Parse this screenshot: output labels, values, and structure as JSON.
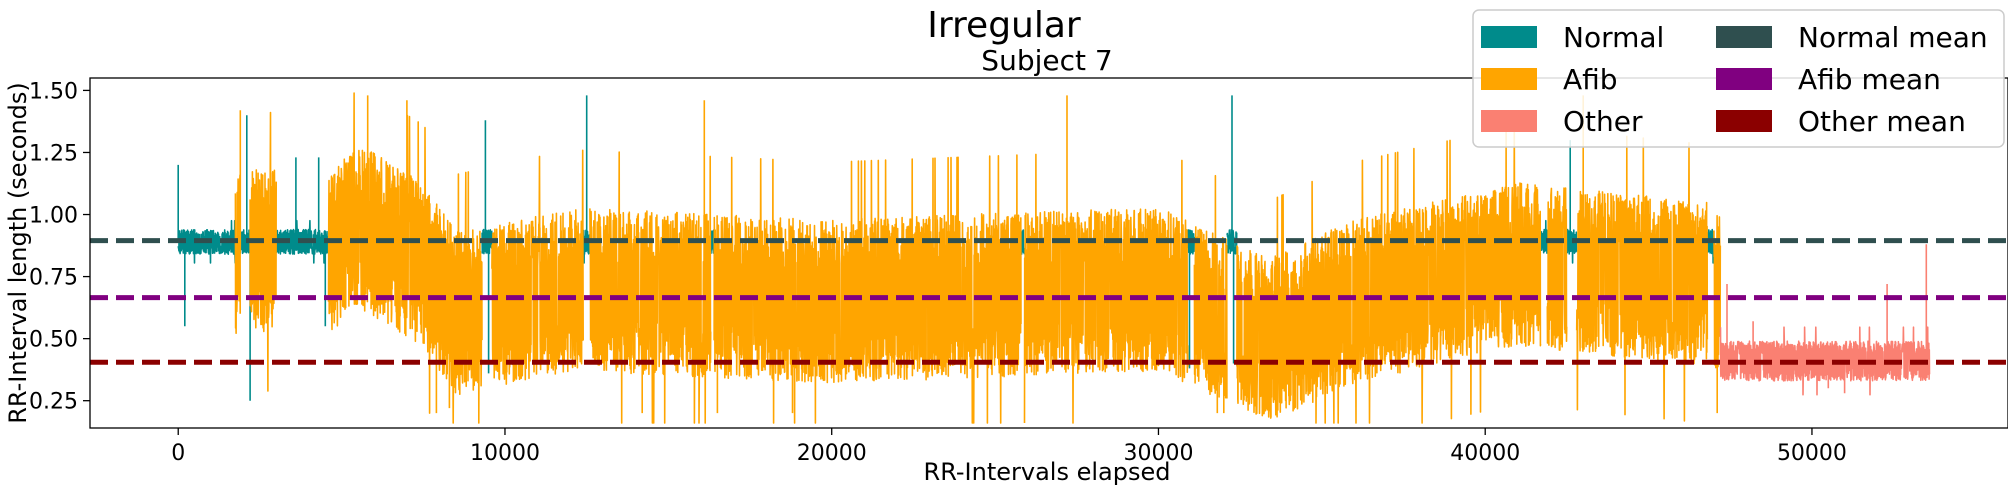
{
  "chart_data": {
    "type": "line",
    "title": "Irregular",
    "subtitle": "Subject 7",
    "xlabel": "RR-Intervals elapsed",
    "ylabel": "RR-Interval length (seconds)",
    "xlim": [
      -2700,
      56000
    ],
    "ylim": [
      0.14,
      1.55
    ],
    "xticks": [
      0,
      10000,
      20000,
      30000,
      40000,
      50000
    ],
    "yticks": [
      0.25,
      0.5,
      0.75,
      1.0,
      1.25,
      1.5
    ],
    "ytick_labels": [
      "0.25",
      "0.50",
      "0.75",
      "1.00",
      "1.25",
      "1.50"
    ],
    "grid": false,
    "legend_position": "top-right",
    "legend_columns": 2,
    "series": [
      {
        "name": "Normal",
        "color": "#008b8b",
        "segments": [
          [
            0,
            1750
          ],
          [
            1900,
            2200
          ],
          [
            3000,
            4600
          ],
          [
            9300,
            9600
          ],
          [
            12400,
            12600
          ],
          [
            16300,
            16400
          ],
          [
            25800,
            25900
          ],
          [
            30900,
            31100
          ],
          [
            32100,
            32400
          ],
          [
            41700,
            41900
          ],
          [
            42500,
            42800
          ],
          [
            46800,
            47000
          ]
        ],
        "baseline": 0.89,
        "spread": 0.05,
        "spikes": [
          [
            0,
            1.2
          ],
          [
            200,
            0.55
          ],
          [
            2100,
            1.4
          ],
          [
            2200,
            0.25
          ],
          [
            3600,
            1.23
          ],
          [
            4300,
            1.23
          ],
          [
            4500,
            0.55
          ],
          [
            9400,
            1.38
          ],
          [
            9500,
            0.36
          ],
          [
            11600,
            1.48
          ],
          [
            12500,
            1.48
          ],
          [
            30950,
            0.38
          ],
          [
            32250,
            1.48
          ],
          [
            32300,
            0.4
          ],
          [
            42600,
            1.3
          ]
        ]
      },
      {
        "name": "Afib",
        "color": "#ffa500",
        "segments": [
          [
            1750,
            1900
          ],
          [
            2200,
            3000
          ],
          [
            4600,
            9300
          ],
          [
            9600,
            12400
          ],
          [
            12600,
            16300
          ],
          [
            16400,
            25800
          ],
          [
            25900,
            30900
          ],
          [
            31100,
            32100
          ],
          [
            32400,
            41700
          ],
          [
            41900,
            42500
          ],
          [
            42800,
            46800
          ],
          [
            47000,
            47200
          ]
        ],
        "profile": [
          [
            1750,
            0.85
          ],
          [
            4600,
            0.85
          ],
          [
            5600,
            0.95
          ],
          [
            7500,
            0.8
          ],
          [
            8500,
            0.6
          ],
          [
            12000,
            0.7
          ],
          [
            20000,
            0.65
          ],
          [
            30000,
            0.7
          ],
          [
            32500,
            0.55
          ],
          [
            33500,
            0.5
          ],
          [
            36000,
            0.65
          ],
          [
            41000,
            0.8
          ],
          [
            46800,
            0.72
          ],
          [
            47200,
            0.7
          ]
        ],
        "spread": 0.33,
        "spikes": [
          [
            1900,
            1.42
          ],
          [
            5800,
            1.48
          ],
          [
            7000,
            1.46
          ],
          [
            7900,
            0.2
          ],
          [
            8300,
            0.22
          ],
          [
            14200,
            0.2
          ],
          [
            16100,
            1.46
          ],
          [
            16500,
            0.2
          ],
          [
            18800,
            0.2
          ],
          [
            27200,
            1.48
          ],
          [
            31800,
            0.2
          ],
          [
            32000,
            0.2
          ],
          [
            47100,
            0.2
          ],
          [
            43000,
            1.48
          ]
        ]
      },
      {
        "name": "Other",
        "color": "#fa8072",
        "segments": [
          [
            47200,
            53600
          ]
        ],
        "baseline": 0.41,
        "spread": 0.08,
        "spikes": [
          [
            47400,
            0.72
          ],
          [
            48200,
            0.57
          ],
          [
            52300,
            0.72
          ],
          [
            53500,
            0.88
          ],
          [
            50500,
            0.3
          ],
          [
            51000,
            0.28
          ]
        ]
      }
    ],
    "mean_lines": [
      {
        "name": "Normal mean",
        "color": "#2f4f4f",
        "value": 0.895
      },
      {
        "name": "Afib mean",
        "color": "#800080",
        "value": 0.665
      },
      {
        "name": "Other mean",
        "color": "#8b0000",
        "value": 0.405
      }
    ]
  }
}
